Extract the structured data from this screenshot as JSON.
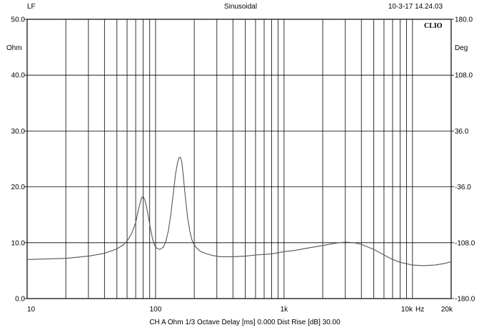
{
  "header": {
    "left": "LF",
    "center": "Sinusoidal",
    "right": "10-3-17 14.24.03"
  },
  "brand": "CLIO",
  "footer": "CH A   Ohm   1/3 Octave   Delay [ms] 0.000   Dist Rise [dB] 30.00",
  "chart_data": {
    "type": "line",
    "title": "Sinusoidal",
    "x_scale": "log",
    "xlim": [
      10,
      20000
    ],
    "x_ticks": [
      {
        "value": 10,
        "label": "10"
      },
      {
        "value": 100,
        "label": "100"
      },
      {
        "value": 1000,
        "label": "1k"
      },
      {
        "value": 10000,
        "label": "10k"
      },
      {
        "value": 20000,
        "label": "20k"
      }
    ],
    "x_unit": "Hz",
    "left_axis": {
      "unit": "Ohm",
      "ylim": [
        0,
        50
      ],
      "ticks": [
        "0.0",
        "10.0",
        "20.0",
        "30.0",
        "40.0",
        "50.0"
      ]
    },
    "right_axis": {
      "unit": "Deg",
      "ylim": [
        -180,
        180
      ],
      "ticks": [
        "-180.0",
        "-108.0",
        "-36.0",
        "36.0",
        "108.0",
        "180.0"
      ]
    },
    "grid": true,
    "series": [
      {
        "x": [
          10,
          20,
          30,
          40,
          50,
          56,
          60,
          65,
          70,
          73,
          76,
          78,
          80,
          82,
          85,
          88,
          91,
          95,
          98,
          102,
          108,
          115,
          120,
          126,
          132,
          138,
          143,
          148,
          152,
          156,
          160,
          163,
          167,
          172,
          178,
          185,
          192,
          200,
          210,
          225,
          250,
          280,
          320,
          400,
          500,
          600,
          700,
          800,
          900,
          1000,
          1200,
          1500,
          2000,
          2500,
          3000,
          3500,
          4000,
          5000,
          6000,
          7000,
          8000,
          10000,
          12000,
          15000,
          18000,
          20000
        ],
        "y": [
          7.0,
          7.2,
          7.6,
          8.1,
          8.9,
          9.6,
          10.3,
          11.6,
          13.6,
          15.6,
          17.2,
          18.1,
          18.3,
          17.8,
          16.5,
          14.6,
          12.6,
          10.6,
          9.6,
          9.0,
          8.8,
          9.2,
          10.2,
          12.2,
          15.4,
          19.2,
          22.3,
          24.3,
          25.2,
          25.3,
          24.4,
          22.8,
          20.3,
          17.4,
          14.3,
          12.0,
          10.5,
          9.6,
          9.0,
          8.4,
          8.0,
          7.7,
          7.5,
          7.5,
          7.6,
          7.8,
          7.9,
          8.0,
          8.2,
          8.4,
          8.6,
          9.0,
          9.5,
          9.9,
          10.1,
          10.0,
          9.7,
          8.8,
          7.8,
          7.0,
          6.5,
          6.0,
          5.9,
          6.0,
          6.3,
          6.6
        ]
      }
    ]
  }
}
